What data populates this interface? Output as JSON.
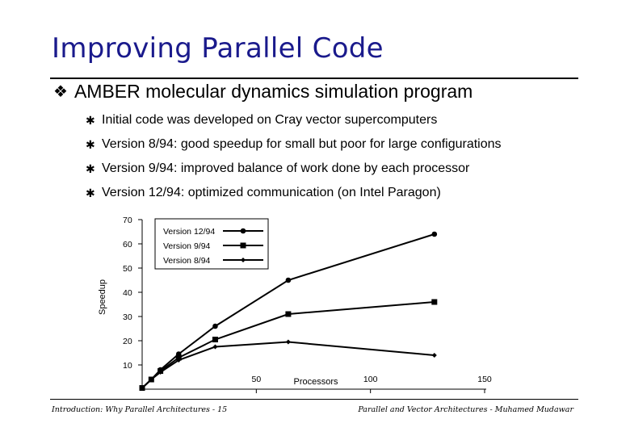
{
  "slide": {
    "title": "Improving Parallel Code",
    "main_bullet": "AMBER molecular dynamics simulation program",
    "sub_bullets": [
      "Initial code was developed on Cray vector supercomputers",
      "Version 8/94: good speedup for small but poor for large configurations",
      "Version 9/94: improved balance of work done by each processor",
      "Version 12/94: optimized communication (on Intel Paragon)"
    ],
    "footer_left": "Introduction: Why Parallel Architectures - 15",
    "footer_right": "Parallel and Vector Architectures - Muhamed Mudawar",
    "bullet_icon": "diamond-bullet-icon",
    "sub_bullet_icon": "star-bullet-icon",
    "title_color": "#1a1a8c"
  },
  "chart_data": {
    "type": "line",
    "title": "",
    "xlabel": "Processors",
    "ylabel": "Speedup",
    "xlim": [
      0,
      150
    ],
    "ylim": [
      0,
      70
    ],
    "x_ticks": [
      50,
      100,
      150
    ],
    "y_ticks": [
      10,
      20,
      30,
      40,
      50,
      60,
      70
    ],
    "legend_position": "top-left",
    "series": [
      {
        "name": "Version 12/94",
        "marker": "circle",
        "x": [
          0,
          4,
          8,
          16,
          32,
          64,
          128
        ],
        "y": [
          0.5,
          4,
          8,
          14.5,
          26,
          45,
          64
        ]
      },
      {
        "name": "Version 9/94",
        "marker": "square",
        "x": [
          0,
          4,
          8,
          16,
          32,
          64,
          128
        ],
        "y": [
          0.5,
          4,
          7.5,
          13,
          20.5,
          31,
          36
        ]
      },
      {
        "name": "Version 8/94",
        "marker": "diamond",
        "x": [
          0,
          4,
          8,
          16,
          32,
          64,
          128
        ],
        "y": [
          0.5,
          4,
          7,
          12,
          17.5,
          19.5,
          14
        ]
      }
    ]
  }
}
